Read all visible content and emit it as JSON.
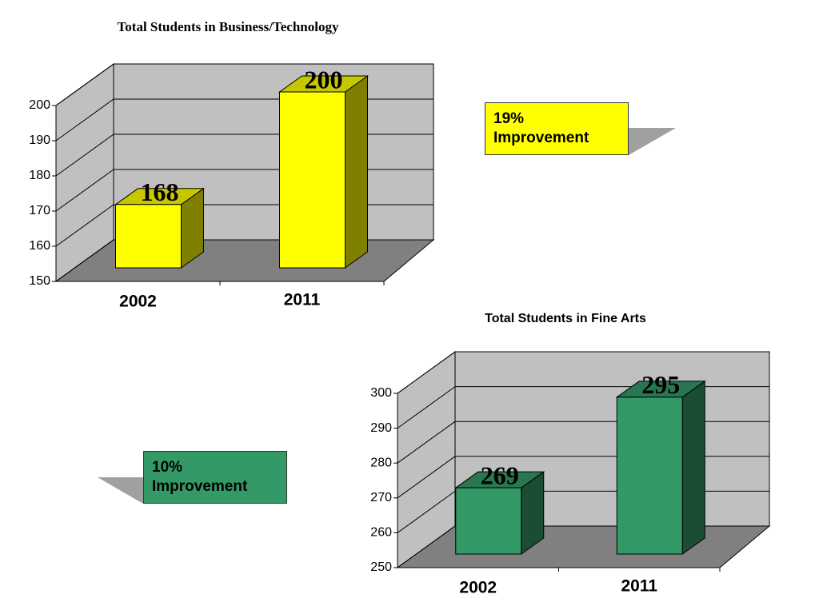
{
  "chart_data": [
    {
      "type": "bar",
      "title": "Total Students in Business/Technology",
      "categories": [
        "2002",
        "2011"
      ],
      "values": [
        168,
        200
      ],
      "color": "#ffff00",
      "ylim": [
        150,
        200
      ],
      "yticks": [
        150,
        160,
        170,
        180,
        190,
        200
      ],
      "annotation": "19% Improvement"
    },
    {
      "type": "bar",
      "title": "Total Students in Fine Arts",
      "categories": [
        "2002",
        "2011"
      ],
      "values": [
        269,
        295
      ],
      "color": "#339966",
      "ylim": [
        250,
        300
      ],
      "yticks": [
        250,
        260,
        270,
        280,
        290,
        300
      ],
      "annotation": "10% Improvement"
    }
  ]
}
